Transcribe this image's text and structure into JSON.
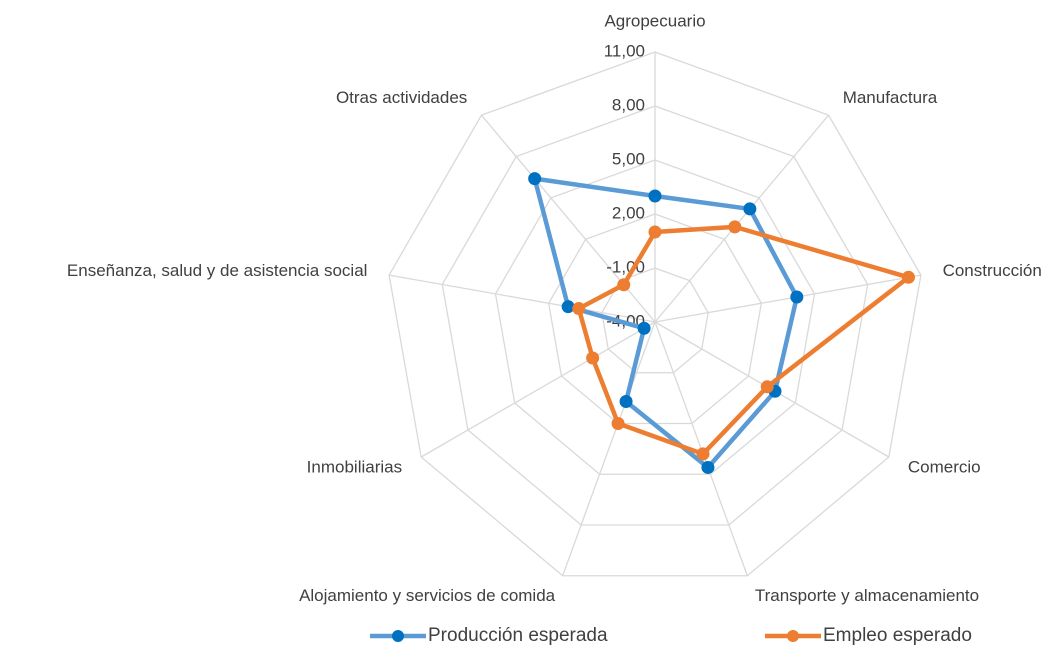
{
  "chart_data": {
    "type": "radar",
    "categories": [
      "Agropecuario",
      "Manufactura",
      "Construcción",
      "Comercio",
      "Transporte y almacenamiento",
      "Alojamiento y servicios de comida",
      "Inmobiliarias",
      "Enseñanza, salud y de asistencia social",
      "Otras actividades"
    ],
    "series": [
      {
        "name": "Producción esperada",
        "color": "#5b9bd5",
        "marker_color": "#0070c0",
        "values": [
          3.0,
          4.2,
          4.0,
          3.7,
          4.6,
          0.7,
          -3.3,
          0.9,
          6.4
        ]
      },
      {
        "name": "Empleo esperado",
        "color": "#ed7d31",
        "marker_color": "#ed7d31",
        "values": [
          1.0,
          2.9,
          10.3,
          3.2,
          3.8,
          2.0,
          0.0,
          0.3,
          -1.3
        ]
      }
    ],
    "ylim": [
      -4,
      11
    ],
    "yticks": [
      {
        "value": -4,
        "label": "-4,00"
      },
      {
        "value": -1,
        "label": "-1,00"
      },
      {
        "value": 2,
        "label": "2,00"
      },
      {
        "value": 5,
        "label": "5,00"
      },
      {
        "value": 8,
        "label": "8,00"
      },
      {
        "value": 11,
        "label": "11,00"
      }
    ],
    "grid": true,
    "legend": "bottom"
  }
}
